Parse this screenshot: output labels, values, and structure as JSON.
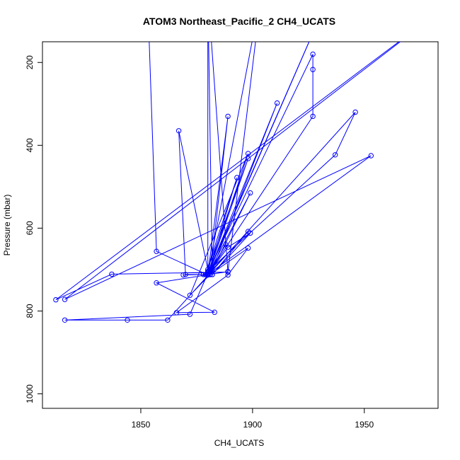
{
  "chart_data": {
    "type": "line",
    "title": "ATOM3 Northeast_Pacific_2 CH4_UCATS",
    "xlabel": "CH4_UCATS",
    "ylabel": "Pressure (mbar)",
    "xlim": [
      1806,
      1983
    ],
    "ylim": [
      1035,
      150
    ],
    "y_reversed": true,
    "x_ticks": [
      1850,
      1900,
      1950
    ],
    "y_ticks": [
      200,
      400,
      600,
      800,
      1000
    ],
    "grid": false,
    "legend": "none",
    "color": "#0000ff",
    "series": [
      {
        "points": [
          [
            1853,
            30
          ],
          [
            1857,
            656
          ],
          [
            1880,
            713
          ],
          [
            1880,
            712
          ],
          [
            1879,
            712
          ],
          [
            1869,
            713
          ],
          [
            1878,
            712
          ],
          [
            1880,
            705
          ],
          [
            1879,
            712
          ],
          [
            1870,
            712
          ],
          [
            1867,
            365
          ],
          [
            1880,
            700
          ],
          [
            1880,
            712
          ],
          [
            1889,
            330
          ],
          [
            1881,
            712
          ],
          [
            1872,
            762
          ],
          [
            1898,
            420
          ],
          [
            1880,
            712
          ],
          [
            1898,
            432
          ],
          [
            1879,
            712
          ],
          [
            1893,
            478
          ],
          [
            1880,
            712
          ],
          [
            1899,
            515
          ],
          [
            1881,
            712
          ],
          [
            1911,
            298
          ],
          [
            1880,
            712
          ],
          [
            1882,
            700
          ],
          [
            1898,
            608
          ],
          [
            1882,
            712
          ],
          [
            1899,
            612
          ],
          [
            1889,
            646
          ],
          [
            1880,
            712
          ],
          [
            1888,
            640
          ],
          [
            1880,
            712
          ],
          [
            1904,
            30
          ],
          [
            1889,
            705
          ],
          [
            1857,
            732
          ],
          [
            1883,
            803
          ],
          [
            1866,
            804
          ],
          [
            1889,
            713
          ],
          [
            1898,
            648
          ],
          [
            1881,
            712
          ],
          [
            1880,
            707
          ],
          [
            1927,
            180
          ],
          [
            1927,
            217
          ],
          [
            1927,
            330
          ],
          [
            1880,
            712
          ],
          [
            1880,
            30
          ],
          [
            1889,
            706
          ],
          [
            1837,
            711
          ],
          [
            1812,
            773
          ],
          [
            1995,
            30
          ],
          [
            1816,
            772
          ],
          [
            1953,
            425
          ],
          [
            1880,
            712
          ],
          [
            1880,
            30
          ],
          [
            1880,
            705
          ],
          [
            1937,
            423
          ],
          [
            1946,
            320
          ],
          [
            1862,
            822
          ],
          [
            1844,
            822
          ],
          [
            1816,
            822
          ],
          [
            1872,
            808
          ],
          [
            1935,
            30
          ],
          [
            1880,
            712
          ],
          [
            1880,
            30
          ],
          [
            1882,
            712
          ],
          [
            1880,
            712
          ],
          [
            1880,
            705
          ],
          [
            1881,
            712
          ]
        ]
      }
    ]
  }
}
